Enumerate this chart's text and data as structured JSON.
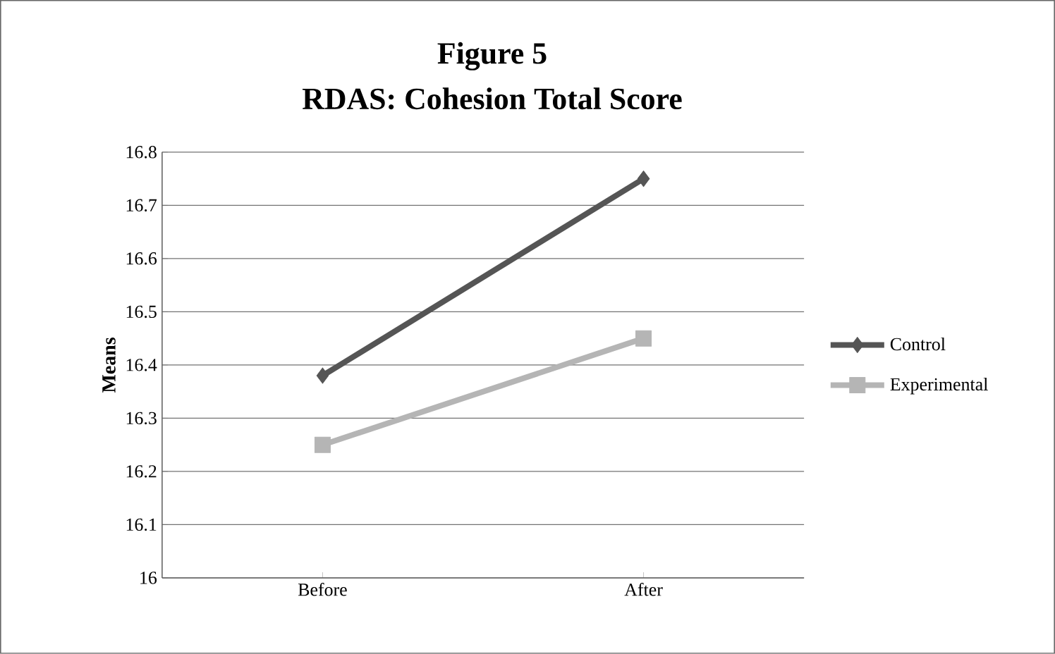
{
  "chart_data": {
    "type": "line",
    "title": "Figure 5",
    "subtitle": "RDAS: Cohesion Total Score",
    "ylabel": "Means",
    "categories": [
      "Before",
      "After"
    ],
    "series": [
      {
        "name": "Control",
        "color": "#555555",
        "marker": "diamond",
        "values": [
          16.38,
          16.75
        ]
      },
      {
        "name": "Experimental",
        "color": "#b5b5b5",
        "marker": "square",
        "values": [
          16.25,
          16.45
        ]
      }
    ],
    "ylim": [
      16,
      16.8
    ],
    "yticks": [
      16,
      16.1,
      16.2,
      16.3,
      16.4,
      16.5,
      16.6,
      16.7,
      16.8
    ],
    "grid": "y",
    "legend": "right"
  }
}
